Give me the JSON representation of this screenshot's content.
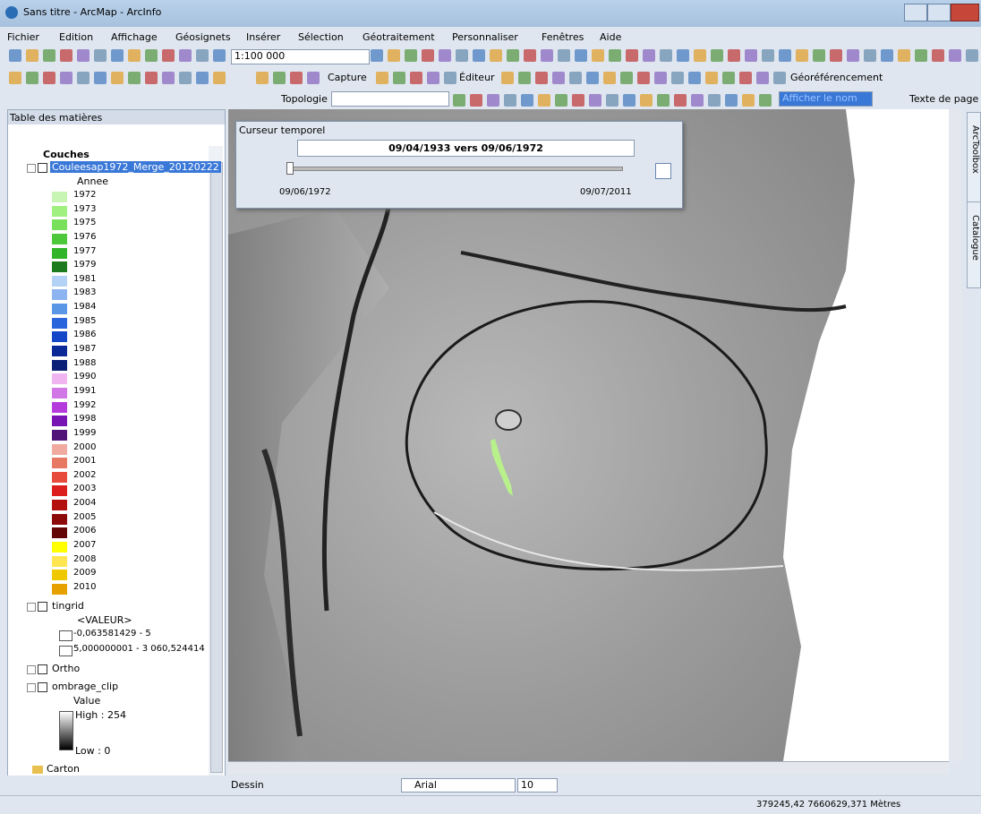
{
  "window": {
    "title": "Sans titre - ArcMap - ArcInfo"
  },
  "menu": [
    "Fichier",
    "Edition",
    "Affichage",
    "Géosignets",
    "Insérer",
    "Sélection",
    "Géotraitement",
    "Personnaliser",
    "Fenêtres",
    "Aide"
  ],
  "toolbar": {
    "scale": "1:100 000",
    "capture": "Capture",
    "editor": "Éditeur",
    "georef": "Géoréférencement",
    "topology": "Topologie :",
    "show_name": "Afficher le nom",
    "page_text": "Texte de page"
  },
  "toc": {
    "title": "Table des matières",
    "root": "Couches",
    "layers": [
      {
        "name": "Couleesap1972_Merge_20120222",
        "field": "Annee",
        "classes": [
          {
            "label": "1972",
            "color": "#c8f5b4"
          },
          {
            "label": "1973",
            "color": "#a0f080"
          },
          {
            "label": "1975",
            "color": "#78e05a"
          },
          {
            "label": "1976",
            "color": "#4cc83a"
          },
          {
            "label": "1977",
            "color": "#32b428"
          },
          {
            "label": "1979",
            "color": "#1e7a1e"
          },
          {
            "label": "1981",
            "color": "#b4d2f5"
          },
          {
            "label": "1983",
            "color": "#8cb4f0"
          },
          {
            "label": "1984",
            "color": "#5a96e6"
          },
          {
            "label": "1985",
            "color": "#2864dc"
          },
          {
            "label": "1986",
            "color": "#1446c8"
          },
          {
            "label": "1987",
            "color": "#0a2896"
          },
          {
            "label": "1988",
            "color": "#0a1e78"
          },
          {
            "label": "1990",
            "color": "#f0b4f0"
          },
          {
            "label": "1991",
            "color": "#d278e6"
          },
          {
            "label": "1992",
            "color": "#b43cdc"
          },
          {
            "label": "1998",
            "color": "#7814b4"
          },
          {
            "label": "1999",
            "color": "#501478"
          },
          {
            "label": "2000",
            "color": "#f0aaa0"
          },
          {
            "label": "2001",
            "color": "#e67864"
          },
          {
            "label": "2002",
            "color": "#e64b3c"
          },
          {
            "label": "2003",
            "color": "#dc1e1e"
          },
          {
            "label": "2004",
            "color": "#b40f0f"
          },
          {
            "label": "2005",
            "color": "#8c0a0a"
          },
          {
            "label": "2006",
            "color": "#640505"
          },
          {
            "label": "2007",
            "color": "#ffff00"
          },
          {
            "label": "2008",
            "color": "#ffe650"
          },
          {
            "label": "2009",
            "color": "#f0c800"
          },
          {
            "label": "2010",
            "color": "#e6a000"
          }
        ]
      },
      {
        "name": "tingrid",
        "field": "<VALEUR>",
        "classes": [
          {
            "label": "-0,063581429 - 5",
            "color": "#ffffff"
          },
          {
            "label": "5,000000001 - 3 060,524414",
            "color": "#ffffff"
          }
        ]
      },
      {
        "name": "Ortho"
      },
      {
        "name": "ombrage_clip",
        "field": "Value",
        "high": "High : 254",
        "low": "Low : 0"
      }
    ],
    "group": "Carton"
  },
  "time_slider": {
    "title": "Curseur temporel",
    "range": "09/04/1933 vers 09/06/1972",
    "start": "09/06/1972",
    "end": "09/07/2011"
  },
  "side_tabs": [
    "ArcToolbox",
    "Catalogue"
  ],
  "draw_toolbar": {
    "draw": "Dessin",
    "font": "Arial",
    "size": "10"
  },
  "status": {
    "coords": "379245,42 7660629,371 Mètres"
  }
}
